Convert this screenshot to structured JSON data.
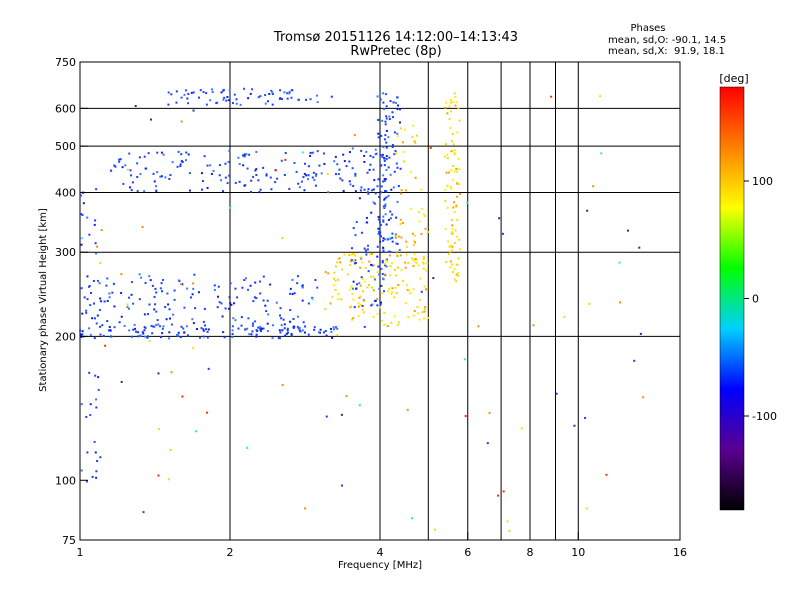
{
  "chart_data": {
    "type": "scatter",
    "title": "Tromsø 20151126 14:12:00–14:13:43",
    "subtitle": "RwPretec (8p)",
    "xlabel": "Frequency [MHz]",
    "ylabel": "Stationary phase Virtual Height [km]",
    "xscale": "log",
    "yscale": "log",
    "xlim": [
      1,
      16
    ],
    "ylim": [
      75,
      750
    ],
    "x_ticks": [
      1,
      2,
      4,
      6,
      8,
      10,
      16
    ],
    "y_ticks": [
      75,
      100,
      200,
      300,
      400,
      500,
      600,
      750
    ],
    "x_tick_labels": [
      "1",
      "2",
      "4",
      "6",
      "8",
      "10",
      "16"
    ],
    "y_tick_labels": [
      "75",
      "100",
      "200",
      "300",
      "400",
      "500",
      "600",
      "750"
    ],
    "x_gridlines": [
      2,
      4,
      5,
      6,
      7,
      8,
      9,
      10
    ],
    "y_gridlines": [
      200,
      300,
      400,
      500,
      600
    ],
    "legend": {
      "title": "Phases",
      "line_o": "mean, sd,O: -90.1, 14.5",
      "line_x": "mean, sd,X:  91.9, 18.1"
    },
    "colorbar": {
      "label": "[deg]",
      "range": [
        -180,
        180
      ],
      "ticks": [
        100,
        0,
        -100
      ],
      "tick_labels": [
        "100",
        "0",
        "-100"
      ],
      "colormap": [
        "#000000",
        "#5a0090",
        "#0000ff",
        "#00d0ff",
        "#00ff00",
        "#ffff00",
        "#ff8000",
        "#ff0000"
      ]
    },
    "series": [
      {
        "name": "O",
        "color": "#1a3cff",
        "traces": [
          {
            "x_range": [
              1.0,
              3.3
            ],
            "h_range": [
              198,
              212
            ],
            "n": 130
          },
          {
            "x_range": [
              1.0,
              3.0
            ],
            "h_range": [
              205,
              270
            ],
            "n": 170
          },
          {
            "x_range": [
              1.15,
              3.6
            ],
            "h_range": [
              400,
              490
            ],
            "n": 150
          },
          {
            "x_range": [
              1.5,
              3.0
            ],
            "h_range": [
              610,
              660
            ],
            "n": 70
          },
          {
            "x_range": [
              3.5,
              4.1
            ],
            "h_range": [
              230,
              500
            ],
            "n": 90
          },
          {
            "x_range": [
              3.95,
              4.15
            ],
            "h_range": [
              260,
              650
            ],
            "n": 80
          },
          {
            "x_range": [
              4.15,
              4.4
            ],
            "h_range": [
              300,
              640
            ],
            "n": 50
          },
          {
            "x_range": [
              1.0,
              1.1
            ],
            "h_range": [
              95,
              420
            ],
            "n": 40
          }
        ]
      },
      {
        "name": "X",
        "color": "#ffea00",
        "traces": [
          {
            "x_range": [
              3.1,
              5.0
            ],
            "h_range": [
              210,
              300
            ],
            "n": 150
          },
          {
            "x_range": [
              5.4,
              5.8
            ],
            "h_range": [
              260,
              650
            ],
            "n": 90
          },
          {
            "x_range": [
              4.3,
              5.0
            ],
            "h_range": [
              290,
              560
            ],
            "n": 40
          }
        ]
      }
    ],
    "scatter_noise": {
      "x_range": [
        1.0,
        15.0
      ],
      "h_range": [
        78,
        640
      ],
      "n": 90
    }
  }
}
